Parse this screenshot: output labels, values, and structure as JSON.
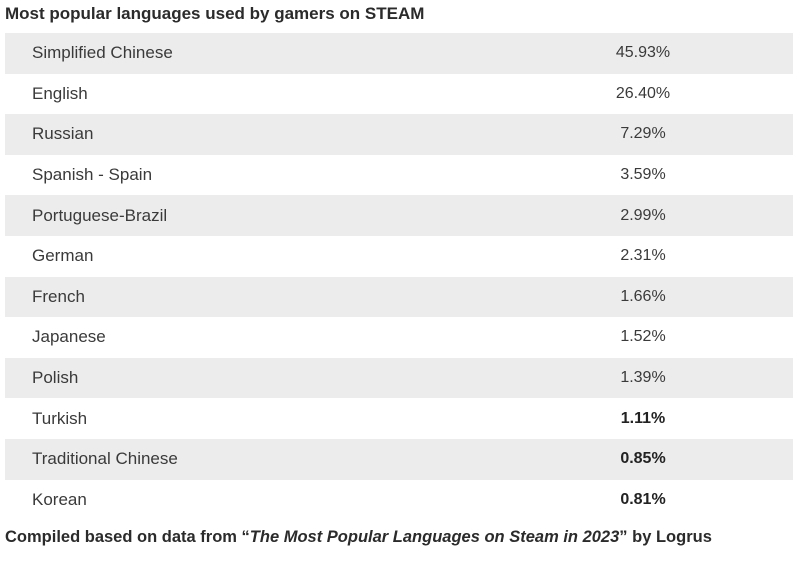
{
  "title": "Most popular languages used by gamers on STEAM",
  "chart_data": {
    "type": "table",
    "title": "Most popular languages used by gamers on STEAM",
    "rows": [
      {
        "language": "Simplified Chinese",
        "value": "45.93%",
        "bold": false
      },
      {
        "language": "English",
        "value": "26.40%",
        "bold": false
      },
      {
        "language": "Russian",
        "value": "7.29%",
        "bold": false
      },
      {
        "language": "Spanish - Spain",
        "value": "3.59%",
        "bold": false
      },
      {
        "language": "Portuguese-Brazil",
        "value": "2.99%",
        "bold": false
      },
      {
        "language": "German",
        "value": "2.31%",
        "bold": false
      },
      {
        "language": "French",
        "value": "1.66%",
        "bold": false
      },
      {
        "language": "Japanese",
        "value": "1.52%",
        "bold": false
      },
      {
        "language": "Polish",
        "value": "1.39%",
        "bold": false
      },
      {
        "language": "Turkish",
        "value": "1.11%",
        "bold": true
      },
      {
        "language": "Traditional Chinese",
        "value": "0.85%",
        "bold": true
      },
      {
        "language": "Korean",
        "value": "0.81%",
        "bold": true
      }
    ]
  },
  "footer": {
    "prefix": "Compiled based on data from “",
    "source_title": "The Most Popular Languages on Steam in 2023",
    "suffix": "” by Logrus"
  }
}
